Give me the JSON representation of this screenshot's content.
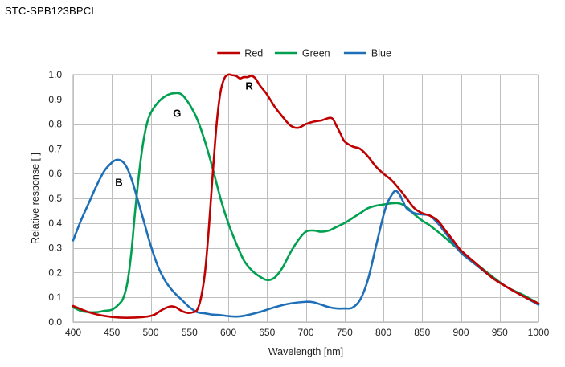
{
  "page": {
    "title": "STC-SPB123BPCL"
  },
  "chart_data": {
    "type": "line",
    "title": "",
    "xlabel": "Wavelength [nm]",
    "ylabel": "Relative response [ ]",
    "xlim": [
      400,
      1000
    ],
    "ylim": [
      0,
      1.0
    ],
    "xticks": [
      400,
      450,
      500,
      550,
      600,
      650,
      700,
      750,
      800,
      850,
      900,
      950,
      1000
    ],
    "yticks": [
      0.0,
      0.1,
      0.2,
      0.3,
      0.4,
      0.5,
      0.6,
      0.7,
      0.8,
      0.9,
      1.0
    ],
    "grid": true,
    "legend_position": "top-center",
    "annotations": [
      {
        "text": "R",
        "x": 627,
        "y": 0.94
      },
      {
        "text": "G",
        "x": 534,
        "y": 0.83
      },
      {
        "text": "B",
        "x": 459,
        "y": 0.55
      }
    ],
    "series": [
      {
        "name": "Red",
        "color": "#c00000",
        "x": [
          400,
          420,
          440,
          460,
          480,
          495,
          505,
          515,
          525,
          532,
          540,
          548,
          555,
          560,
          565,
          570,
          575,
          580,
          585,
          590,
          595,
          600,
          605,
          610,
          615,
          620,
          625,
          630,
          635,
          640,
          645,
          650,
          660,
          670,
          680,
          690,
          700,
          710,
          720,
          730,
          735,
          740,
          745,
          750,
          760,
          770,
          780,
          790,
          800,
          810,
          820,
          830,
          840,
          850,
          860,
          870,
          880,
          890,
          900,
          920,
          940,
          960,
          980,
          1000
        ],
        "y": [
          0.065,
          0.04,
          0.025,
          0.018,
          0.018,
          0.022,
          0.03,
          0.05,
          0.063,
          0.06,
          0.045,
          0.037,
          0.04,
          0.05,
          0.1,
          0.2,
          0.38,
          0.6,
          0.8,
          0.93,
          0.985,
          1.0,
          0.998,
          0.995,
          0.985,
          0.99,
          0.99,
          0.995,
          0.985,
          0.96,
          0.94,
          0.92,
          0.87,
          0.83,
          0.795,
          0.785,
          0.8,
          0.81,
          0.815,
          0.825,
          0.82,
          0.79,
          0.76,
          0.73,
          0.71,
          0.7,
          0.67,
          0.63,
          0.6,
          0.575,
          0.54,
          0.5,
          0.46,
          0.44,
          0.43,
          0.41,
          0.37,
          0.33,
          0.29,
          0.235,
          0.18,
          0.14,
          0.105,
          0.075
        ]
      },
      {
        "name": "Green",
        "color": "#00a050",
        "x": [
          400,
          410,
          420,
          430,
          440,
          450,
          460,
          465,
          470,
          475,
          480,
          485,
          490,
          495,
          500,
          510,
          520,
          530,
          540,
          550,
          560,
          570,
          580,
          590,
          600,
          610,
          620,
          630,
          640,
          650,
          660,
          670,
          680,
          690,
          700,
          710,
          720,
          730,
          740,
          750,
          760,
          770,
          780,
          790,
          800,
          810,
          820,
          830,
          840,
          850,
          860,
          880,
          900,
          920,
          940,
          960,
          980,
          1000
        ],
        "y": [
          0.06,
          0.045,
          0.04,
          0.04,
          0.045,
          0.05,
          0.075,
          0.1,
          0.16,
          0.28,
          0.45,
          0.6,
          0.72,
          0.8,
          0.845,
          0.89,
          0.915,
          0.925,
          0.92,
          0.88,
          0.82,
          0.73,
          0.62,
          0.5,
          0.4,
          0.32,
          0.25,
          0.21,
          0.185,
          0.17,
          0.18,
          0.22,
          0.28,
          0.33,
          0.365,
          0.37,
          0.365,
          0.37,
          0.385,
          0.4,
          0.42,
          0.44,
          0.46,
          0.47,
          0.475,
          0.48,
          0.48,
          0.465,
          0.435,
          0.41,
          0.39,
          0.34,
          0.285,
          0.235,
          0.185,
          0.14,
          0.11,
          0.075
        ]
      },
      {
        "name": "Blue",
        "color": "#1e6fb8",
        "x": [
          400,
          410,
          420,
          430,
          440,
          450,
          455,
          460,
          465,
          470,
          475,
          480,
          490,
          500,
          510,
          520,
          530,
          540,
          550,
          560,
          570,
          580,
          590,
          600,
          610,
          620,
          640,
          660,
          680,
          700,
          710,
          720,
          730,
          740,
          750,
          760,
          770,
          780,
          790,
          800,
          805,
          810,
          815,
          820,
          825,
          830,
          840,
          850,
          860,
          870,
          880,
          890,
          900,
          920,
          940,
          960,
          980,
          1000
        ],
        "y": [
          0.33,
          0.41,
          0.48,
          0.55,
          0.61,
          0.645,
          0.655,
          0.655,
          0.645,
          0.62,
          0.58,
          0.53,
          0.42,
          0.31,
          0.22,
          0.16,
          0.12,
          0.09,
          0.06,
          0.04,
          0.035,
          0.03,
          0.028,
          0.024,
          0.022,
          0.025,
          0.04,
          0.06,
          0.075,
          0.082,
          0.08,
          0.07,
          0.06,
          0.055,
          0.055,
          0.058,
          0.09,
          0.17,
          0.3,
          0.43,
          0.48,
          0.51,
          0.53,
          0.52,
          0.49,
          0.46,
          0.44,
          0.435,
          0.43,
          0.4,
          0.36,
          0.32,
          0.28,
          0.23,
          0.18,
          0.14,
          0.105,
          0.07
        ]
      }
    ]
  }
}
